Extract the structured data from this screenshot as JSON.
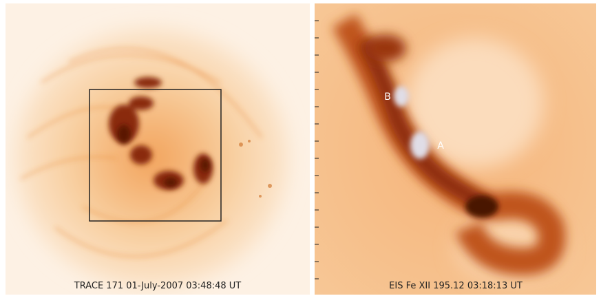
{
  "panels": [
    {
      "caption": "TRACE 171   01-July-2007 03:48:48 UT"
    },
    {
      "caption": "EIS Fe XII 195.12 03:18:13 UT",
      "labels": [
        "B",
        "A"
      ]
    }
  ]
}
